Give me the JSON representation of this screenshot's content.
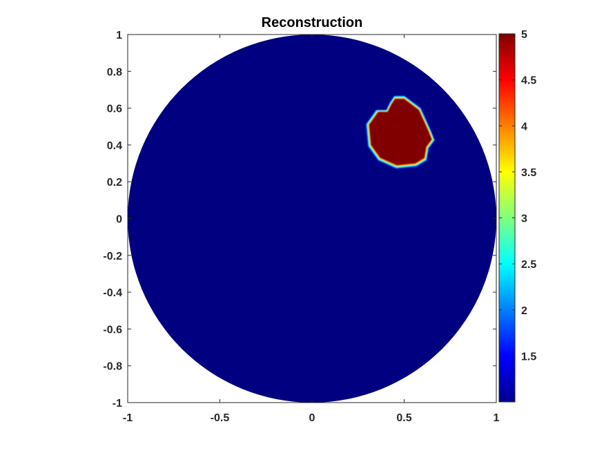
{
  "chart_data": {
    "type": "heatmap",
    "title": "Reconstruction",
    "xlabel": "",
    "ylabel": "",
    "xlim": [
      -1,
      1
    ],
    "ylim": [
      -1,
      1
    ],
    "xticks": [
      -1,
      -0.5,
      0,
      0.5,
      1
    ],
    "xtick_labels": [
      "-1",
      "-0.5",
      "0",
      "0.5",
      "1"
    ],
    "yticks": [
      1,
      0.8,
      0.6,
      0.4,
      0.2,
      0,
      -0.2,
      -0.4,
      -0.6,
      -0.8,
      -1
    ],
    "ytick_labels": [
      "1",
      "0.8",
      "0.6",
      "0.4",
      "0.2",
      "0",
      "-0.2",
      "-0.4",
      "-0.6",
      "-0.8",
      "-1"
    ],
    "colormap": "jet",
    "domain": {
      "shape": "disk",
      "center": [
        0,
        0
      ],
      "radius": 1
    },
    "background_value": 1.0,
    "inclusion": {
      "value": 5.0,
      "outline": [
        [
          0.43,
          0.62
        ],
        [
          0.45,
          0.65
        ],
        [
          0.5,
          0.65
        ],
        [
          0.58,
          0.59
        ],
        [
          0.63,
          0.48
        ],
        [
          0.65,
          0.43
        ],
        [
          0.62,
          0.39
        ],
        [
          0.61,
          0.33
        ],
        [
          0.56,
          0.3
        ],
        [
          0.46,
          0.29
        ],
        [
          0.37,
          0.33
        ],
        [
          0.32,
          0.4
        ],
        [
          0.31,
          0.51
        ],
        [
          0.36,
          0.58
        ],
        [
          0.41,
          0.58
        ]
      ]
    },
    "colorbar": {
      "range": [
        1.0,
        5.0
      ],
      "ticks": [
        1.5,
        2,
        2.5,
        3,
        3.5,
        4,
        4.5,
        5
      ],
      "tick_labels": [
        "1.5",
        "2",
        "2.5",
        "3",
        "3.5",
        "4",
        "4.5",
        "5"
      ]
    },
    "grid": false
  }
}
